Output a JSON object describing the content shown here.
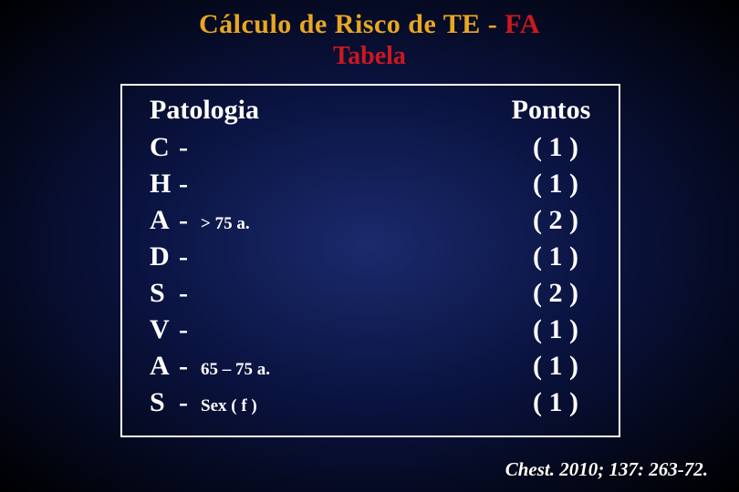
{
  "title": {
    "part1": "Cálculo  de  Risco  de  TE",
    "dash": " - ",
    "part2": "FA"
  },
  "subtitle": "Tabela",
  "headers": {
    "left": "Patologia",
    "right": "Pontos"
  },
  "rows": [
    {
      "letter": "C",
      "dash": "-",
      "detail": "",
      "points": "( 1 )"
    },
    {
      "letter": "H",
      "dash": "-",
      "detail": "",
      "points": "( 1 )"
    },
    {
      "letter": "A",
      "dash": "-",
      "detail": ">  75  a.",
      "points": "( 2 )"
    },
    {
      "letter": "D",
      "dash": "-",
      "detail": "",
      "points": "( 1 )"
    },
    {
      "letter": "S",
      "dash": "-",
      "detail": "",
      "points": "( 2 )"
    },
    {
      "letter": "V",
      "dash": "-",
      "detail": "",
      "points": "( 1 )"
    },
    {
      "letter": "A",
      "dash": "-",
      "detail": "65 – 75  a.",
      "points": "( 1 )"
    },
    {
      "letter": "S",
      "dash": "-",
      "detail": "Sex  ( f )",
      "points": "( 1 )"
    }
  ],
  "citation": "Chest. 2010; 137: 263-72.",
  "colors": {
    "title_orange": "#e8a722",
    "title_red": "#cc1820",
    "text_white": "#ffffff",
    "bg_center": "#1a2a6c",
    "bg_mid": "#0a1340",
    "bg_edge": "#000000",
    "border": "#ffffff"
  },
  "fonts": {
    "title_size": 30,
    "subtitle_size": 28,
    "row_size": 30,
    "detail_size": 19,
    "citation_size": 21
  }
}
